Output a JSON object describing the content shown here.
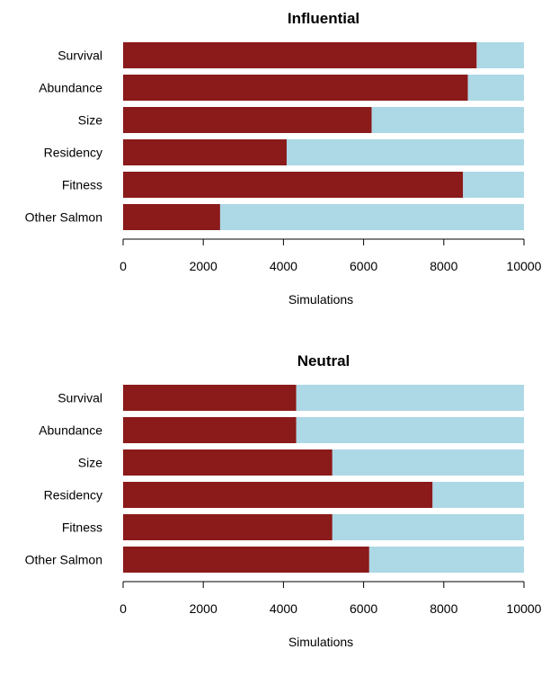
{
  "chart_data": [
    {
      "type": "bar",
      "orientation": "horizontal",
      "stacked": true,
      "title": "Influential",
      "xlabel": "Simulations",
      "ylabel": "",
      "xlim": [
        0,
        10000
      ],
      "xticks": [
        "0",
        "2000",
        "4000",
        "6000",
        "8000",
        "10000"
      ],
      "xtick_values": [
        0,
        2000,
        4000,
        6000,
        8000,
        10000
      ],
      "categories": [
        "Survival",
        "Abundance",
        "Size",
        "Residency",
        "Fitness",
        "Other Salmon"
      ],
      "series": [
        {
          "values": [
            8820,
            8600,
            6200,
            4080,
            8480,
            2420
          ],
          "color": "#8b1a1a"
        },
        {
          "values": [
            1180,
            1400,
            3800,
            5920,
            1520,
            7580
          ],
          "color": "#add8e6"
        }
      ],
      "grid": false,
      "legend": "none"
    },
    {
      "type": "bar",
      "orientation": "horizontal",
      "stacked": true,
      "title": "Neutral",
      "xlabel": "Simulations",
      "ylabel": "",
      "xlim": [
        0,
        10000
      ],
      "xticks": [
        "0",
        "2000",
        "4000",
        "6000",
        "8000",
        "10000"
      ],
      "xtick_values": [
        0,
        2000,
        4000,
        6000,
        8000,
        10000
      ],
      "categories": [
        "Survival",
        "Abundance",
        "Size",
        "Residency",
        "Fitness",
        "Other Salmon"
      ],
      "series": [
        {
          "values": [
            4320,
            4320,
            5220,
            7720,
            5220,
            6140
          ],
          "color": "#8b1a1a"
        },
        {
          "values": [
            5680,
            5680,
            4780,
            2280,
            4780,
            3860
          ],
          "color": "#add8e6"
        }
      ],
      "grid": false,
      "legend": "none"
    }
  ]
}
